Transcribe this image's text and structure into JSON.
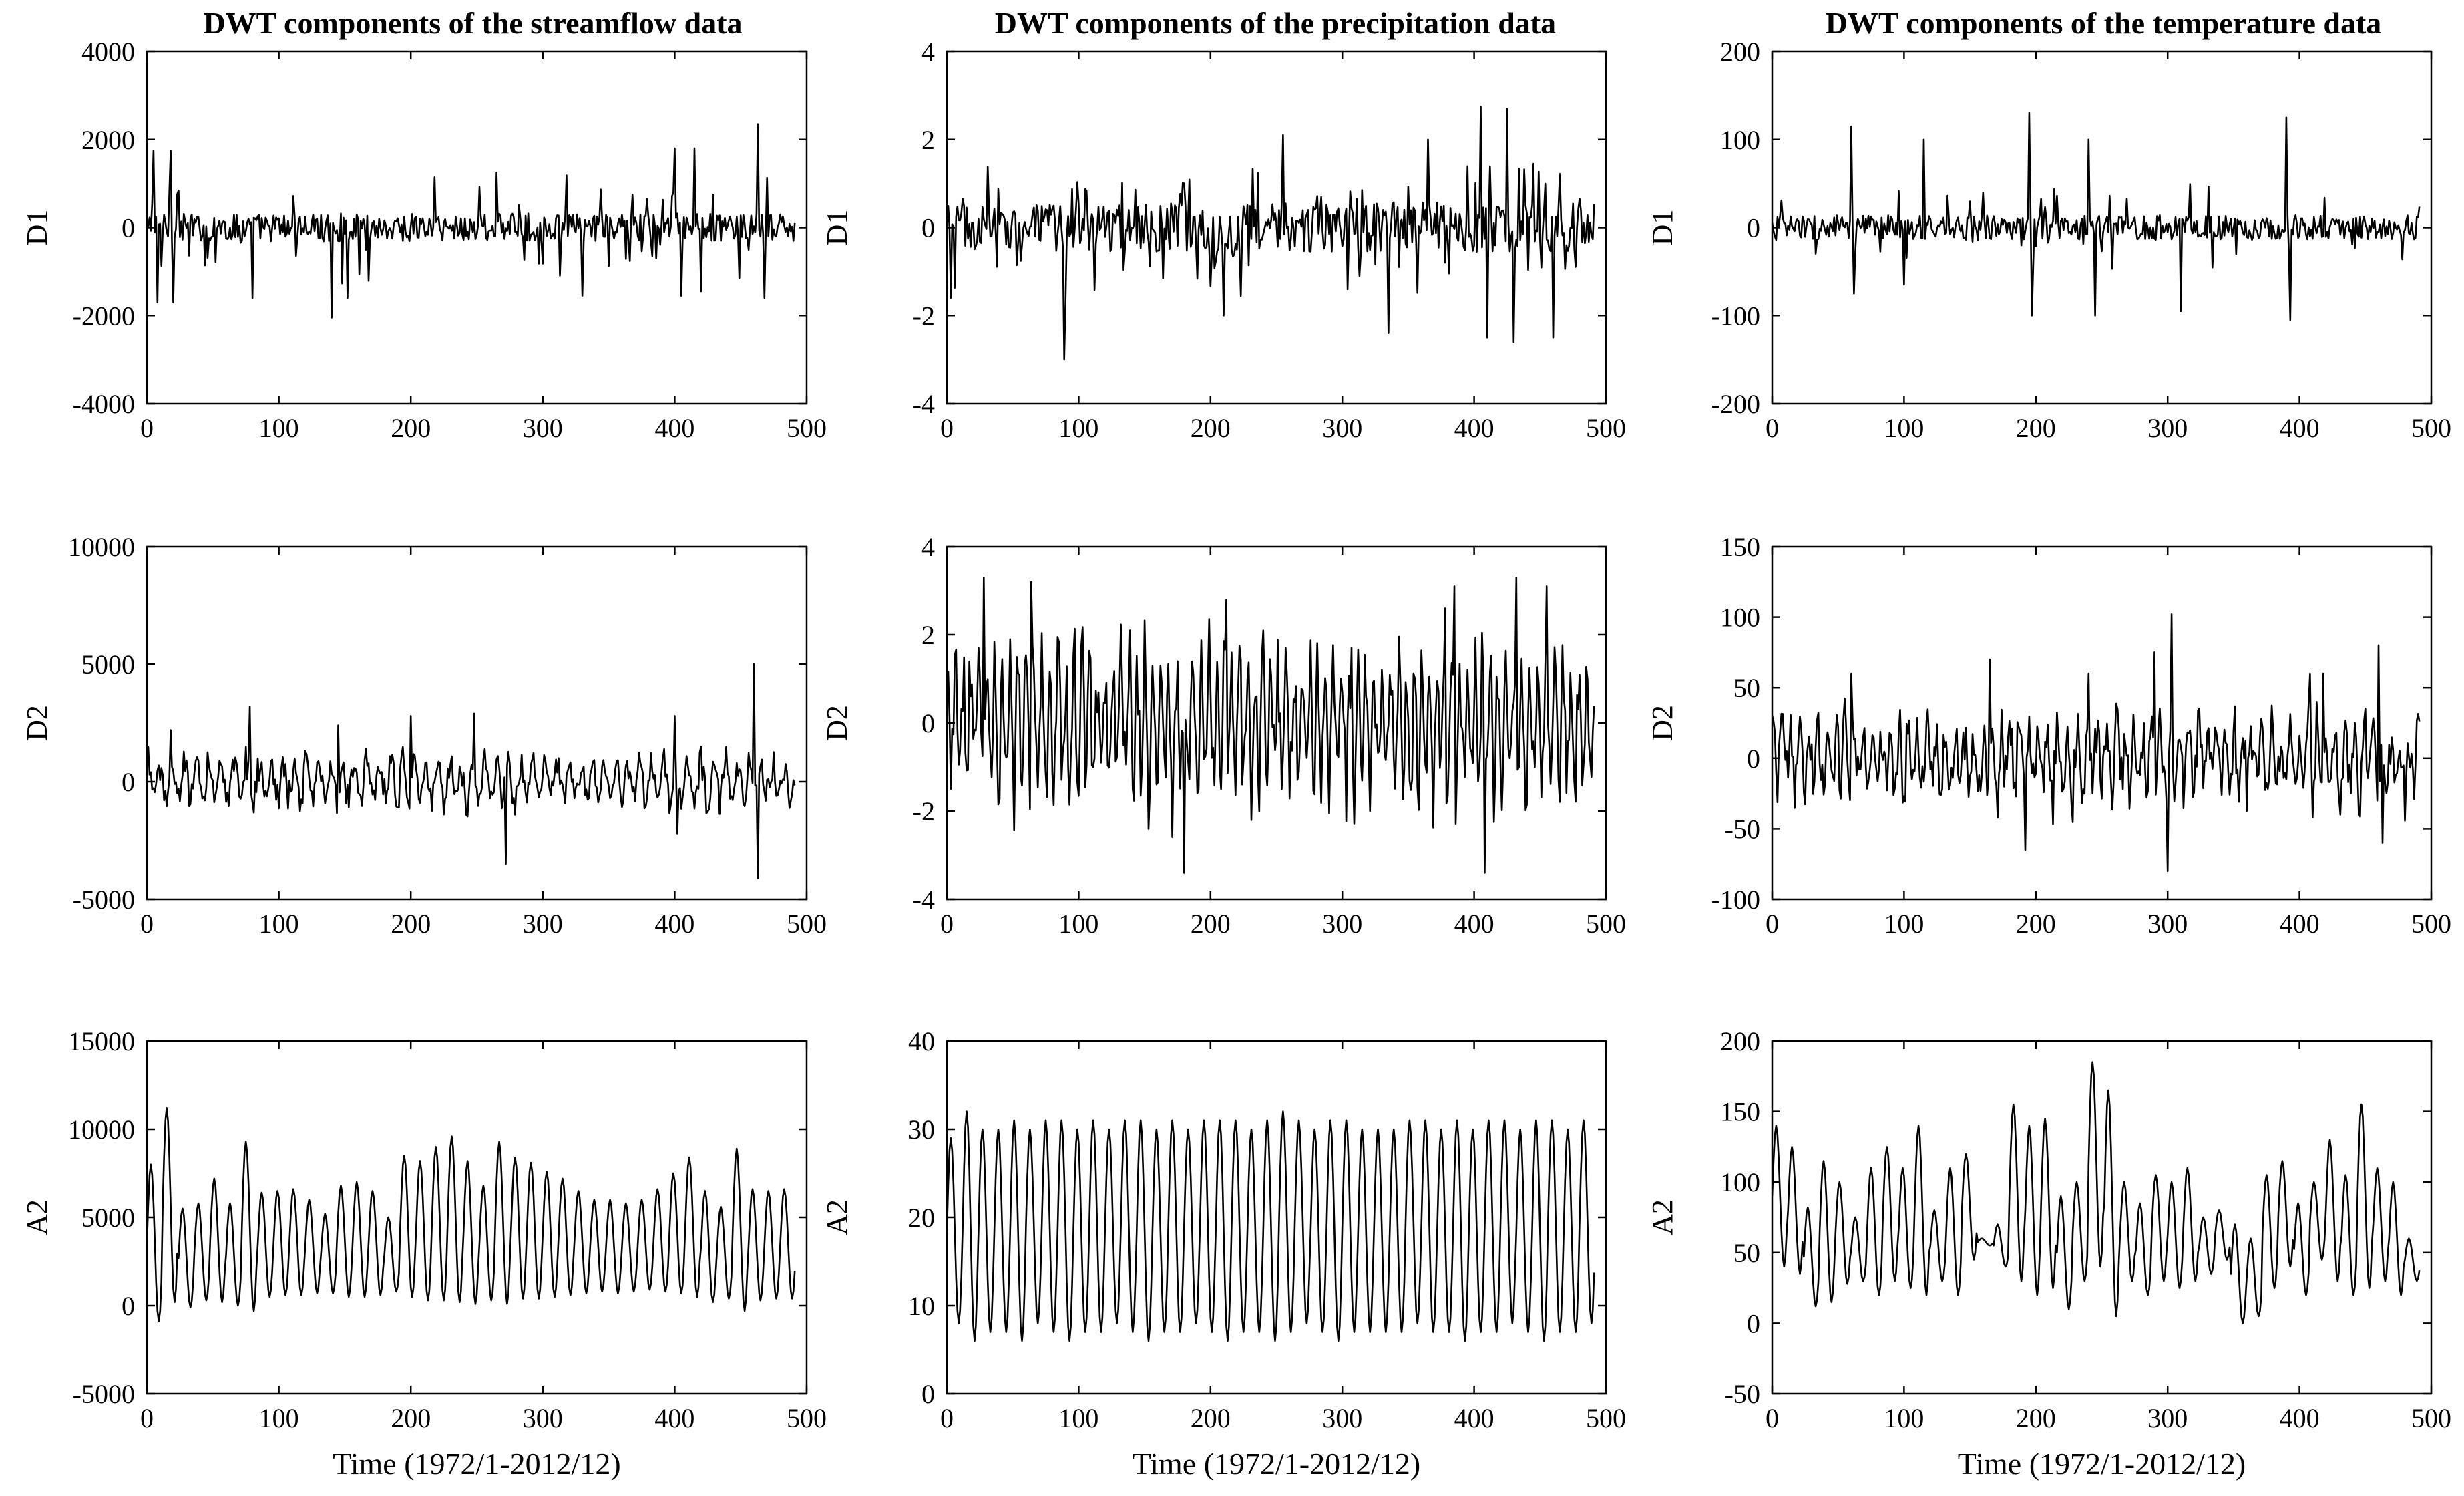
{
  "figure": {
    "column_titles": [
      "DWT components of the streamflow data",
      "DWT components of the  precipitation data",
      "DWT components of the temperature data"
    ],
    "xlabel": "Time (1972/1-2012/12)"
  },
  "chart_data": [
    {
      "type": "line",
      "title": "DWT components of the streamflow data",
      "xlabel": "",
      "ylabel": "D1",
      "xlim": [
        0,
        500
      ],
      "ylim": [
        -4000,
        4000
      ],
      "xticks": [
        0,
        100,
        200,
        300,
        400,
        500
      ],
      "yticks": [
        -4000,
        -2000,
        0,
        2000,
        4000
      ],
      "grid": false,
      "n_points": 492,
      "series": [
        {
          "kind": "noise",
          "base": 0,
          "amp": 320,
          "spike_prob": 0.09,
          "spike_amp": 1000,
          "spikes": [
            [
              5,
              1750
            ],
            [
              8,
              -1700
            ],
            [
              18,
              1750
            ],
            [
              20,
              -1700
            ],
            [
              80,
              -1600
            ],
            [
              140,
              -2050
            ],
            [
              152,
              -1600
            ],
            [
              265,
              1250
            ],
            [
              330,
              -1550
            ],
            [
              400,
              1800
            ],
            [
              405,
              -1550
            ],
            [
              415,
              1800
            ],
            [
              420,
              -1450
            ],
            [
              463,
              2350
            ],
            [
              468,
              -1600
            ]
          ]
        }
      ]
    },
    {
      "type": "line",
      "title": "DWT components of the  precipitation data",
      "xlabel": "",
      "ylabel": "D1",
      "xlim": [
        0,
        500
      ],
      "ylim": [
        -4,
        4
      ],
      "xticks": [
        0,
        100,
        200,
        300,
        400,
        500
      ],
      "yticks": [
        -4,
        -2,
        0,
        2,
        4
      ],
      "grid": false,
      "n_points": 492,
      "series": [
        {
          "kind": "noise",
          "base": 0,
          "amp": 0.55,
          "spike_prob": 0.14,
          "spike_amp": 1.2,
          "spikes": [
            [
              3,
              -1.6
            ],
            [
              89,
              -3.0
            ],
            [
              210,
              -2.0
            ],
            [
              255,
              2.1
            ],
            [
              335,
              -2.4
            ],
            [
              365,
              2.0
            ],
            [
              405,
              2.75
            ],
            [
              410,
              -2.5
            ],
            [
              425,
              2.7
            ],
            [
              430,
              -2.6
            ],
            [
              460,
              -2.5
            ]
          ]
        }
      ]
    },
    {
      "type": "line",
      "title": "DWT components of the temperature data",
      "xlabel": "",
      "ylabel": "D1",
      "xlim": [
        0,
        500
      ],
      "ylim": [
        -200,
        200
      ],
      "xticks": [
        0,
        100,
        200,
        300,
        400,
        500
      ],
      "yticks": [
        -200,
        -100,
        0,
        100,
        200
      ],
      "grid": false,
      "n_points": 492,
      "series": [
        {
          "kind": "noise",
          "base": 0,
          "amp": 14,
          "spike_prob": 0.09,
          "spike_amp": 40,
          "spikes": [
            [
              60,
              115
            ],
            [
              62,
              -75
            ],
            [
              100,
              -65
            ],
            [
              115,
              100
            ],
            [
              195,
              130
            ],
            [
              197,
              -100
            ],
            [
              240,
              100
            ],
            [
              245,
              -100
            ],
            [
              310,
              -95
            ],
            [
              390,
              125
            ],
            [
              393,
              -105
            ]
          ]
        }
      ]
    },
    {
      "type": "line",
      "title": "",
      "xlabel": "",
      "ylabel": "D2",
      "xlim": [
        0,
        500
      ],
      "ylim": [
        -5000,
        10000
      ],
      "xticks": [
        0,
        100,
        200,
        300,
        400,
        500
      ],
      "yticks": [
        -5000,
        0,
        5000,
        10000
      ],
      "grid": false,
      "n_points": 492,
      "series": [
        {
          "kind": "osc",
          "base": 0,
          "amp": 1000,
          "period": 9,
          "noise": 0.5,
          "spikes": [
            [
              18,
              2200
            ],
            [
              78,
              3200
            ],
            [
              145,
              2400
            ],
            [
              200,
              2800
            ],
            [
              248,
              2900
            ],
            [
              272,
              4400
            ],
            [
              272,
              -3500
            ],
            [
              400,
              2800
            ],
            [
              402,
              -2200
            ],
            [
              460,
              5000
            ],
            [
              463,
              -4100
            ]
          ]
        }
      ]
    },
    {
      "type": "line",
      "title": "",
      "xlabel": "",
      "ylabel": "D2",
      "xlim": [
        0,
        500
      ],
      "ylim": [
        -4,
        4
      ],
      "xticks": [
        0,
        100,
        200,
        300,
        400,
        500
      ],
      "yticks": [
        -4,
        -2,
        0,
        2,
        4
      ],
      "grid": false,
      "n_points": 492,
      "series": [
        {
          "kind": "osc",
          "base": 0,
          "amp": 1.8,
          "period": 6,
          "noise": 0.3,
          "spikes": [
            [
              28,
              3.3
            ],
            [
              64,
              3.2
            ],
            [
              180,
              -3.4
            ],
            [
              212,
              2.8
            ],
            [
              378,
              2.6
            ],
            [
              385,
              3.1
            ],
            [
              408,
              -3.4
            ],
            [
              432,
              3.3
            ],
            [
              455,
              3.1
            ]
          ]
        }
      ]
    },
    {
      "type": "line",
      "title": "",
      "xlabel": "",
      "ylabel": "D2",
      "xlim": [
        0,
        500
      ],
      "ylim": [
        -100,
        150
      ],
      "xticks": [
        0,
        100,
        200,
        300,
        400,
        500
      ],
      "yticks": [
        -100,
        -50,
        0,
        50,
        100,
        150
      ],
      "grid": false,
      "n_points": 492,
      "series": [
        {
          "kind": "osc",
          "base": 0,
          "amp": 25,
          "period": 7,
          "noise": 0.7,
          "spikes": [
            [
              60,
              60
            ],
            [
              165,
              70
            ],
            [
              192,
              -65
            ],
            [
              240,
              60
            ],
            [
              290,
              75
            ],
            [
              300,
              -80
            ],
            [
              303,
              102
            ],
            [
              408,
              60
            ],
            [
              418,
              60
            ],
            [
              460,
              80
            ],
            [
              463,
              -60
            ]
          ]
        }
      ]
    },
    {
      "type": "line",
      "title": "",
      "xlabel": "Time (1972/1-2012/12)",
      "ylabel": "A2",
      "xlim": [
        0,
        500
      ],
      "ylim": [
        -5000,
        15000
      ],
      "xticks": [
        0,
        100,
        200,
        300,
        400,
        500
      ],
      "yticks": [
        -5000,
        0,
        5000,
        10000,
        15000
      ],
      "grid": false,
      "n_points": 492,
      "series": [
        {
          "kind": "seasonal",
          "period": 12,
          "peaks": [
            8000,
            11200,
            5500,
            5800,
            7200,
            5800,
            9300,
            6400,
            6500,
            6600,
            6000,
            5200,
            6800,
            7000,
            6500,
            5000,
            8500,
            8200,
            9000,
            9600,
            8200,
            6800,
            9300,
            8400,
            8100,
            7600,
            7200,
            6500,
            6000,
            6000,
            5800,
            6000,
            6600,
            7500,
            8400,
            6500,
            5600,
            8900,
            6600,
            6500,
            6600
          ],
          "troughs": [
            -900,
            200,
            -100,
            300,
            200,
            0,
            -300,
            500,
            600,
            600,
            700,
            700,
            500,
            500,
            600,
            800,
            500,
            300,
            300,
            200,
            100,
            300,
            100,
            400,
            400,
            500,
            600,
            700,
            800,
            700,
            800,
            900,
            800,
            700,
            500,
            200,
            400,
            -300,
            300,
            400,
            400
          ]
        }
      ]
    },
    {
      "type": "line",
      "title": "",
      "xlabel": "Time (1972/1-2012/12)",
      "ylabel": "A2",
      "xlim": [
        0,
        500
      ],
      "ylim": [
        0,
        40
      ],
      "xticks": [
        0,
        100,
        200,
        300,
        400,
        500
      ],
      "yticks": [
        0,
        10,
        20,
        30,
        40
      ],
      "grid": false,
      "n_points": 492,
      "series": [
        {
          "kind": "seasonal",
          "period": 12,
          "peaks": [
            29,
            32,
            30,
            30,
            31,
            30,
            31,
            31,
            30,
            31,
            30,
            31,
            31,
            30,
            31,
            30,
            31,
            31,
            31,
            30,
            31,
            32,
            31,
            30,
            31,
            31,
            30,
            30,
            30,
            31,
            31,
            30,
            31,
            30,
            31,
            31,
            30,
            31,
            31,
            30,
            31
          ],
          "troughs": [
            8,
            6,
            7,
            7,
            6,
            8,
            7,
            6,
            7,
            7,
            8,
            7,
            6,
            7,
            7,
            8,
            7,
            6,
            7,
            7,
            6,
            7,
            8,
            7,
            6,
            7,
            7,
            7,
            7,
            8,
            7,
            7,
            6,
            7,
            7,
            8,
            7,
            6,
            7,
            7,
            8
          ]
        }
      ]
    },
    {
      "type": "line",
      "title": "",
      "xlabel": "Time (1972/1-2012/12)",
      "ylabel": "A2",
      "xlim": [
        0,
        500
      ],
      "ylim": [
        -50,
        200
      ],
      "xticks": [
        0,
        100,
        200,
        300,
        400,
        500
      ],
      "yticks": [
        -50,
        0,
        50,
        100,
        150,
        200
      ],
      "grid": false,
      "n_points": 492,
      "series": [
        {
          "kind": "seasonal",
          "period": 12,
          "peaks": [
            140,
            125,
            82,
            115,
            100,
            75,
            110,
            125,
            110,
            140,
            80,
            110,
            120,
            60,
            70,
            155,
            140,
            145,
            90,
            100,
            185,
            165,
            100,
            85,
            105,
            100,
            110,
            75,
            80,
            70,
            60,
            105,
            115,
            85,
            100,
            130,
            105,
            155,
            110,
            100,
            60
          ],
          "troughs": [
            40,
            35,
            12,
            15,
            28,
            30,
            20,
            30,
            25,
            20,
            30,
            20,
            45,
            55,
            40,
            30,
            20,
            25,
            10,
            30,
            40,
            5,
            30,
            20,
            30,
            25,
            30,
            35,
            45,
            0,
            5,
            25,
            40,
            20,
            45,
            30,
            20,
            25,
            30,
            20,
            30
          ]
        }
      ]
    }
  ]
}
